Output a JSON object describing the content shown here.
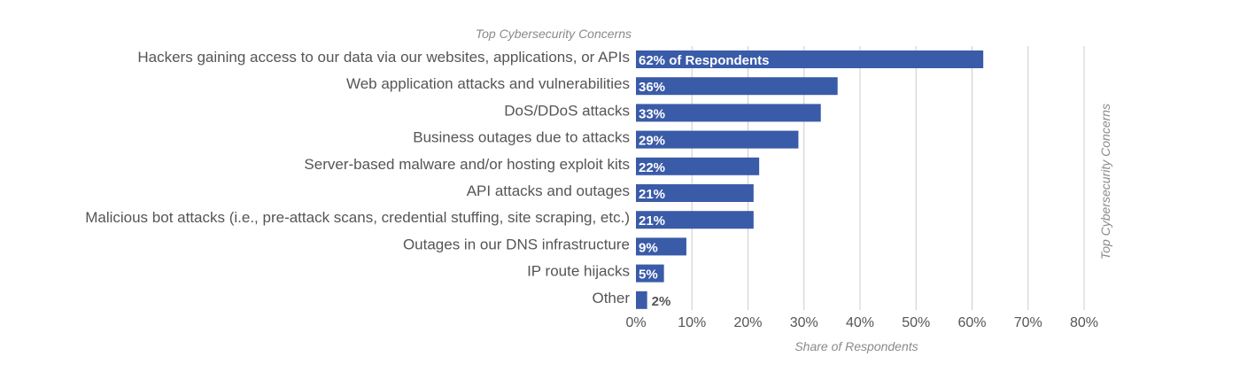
{
  "chart_data": {
    "type": "bar",
    "orientation": "horizontal",
    "title": "Top Cybersecurity Concerns",
    "side_title": "Top Cybersecurity Concerns",
    "xlabel": "Share of Respondents",
    "ylabel": "",
    "xlim": [
      0,
      80
    ],
    "x_ticks": [
      0,
      10,
      20,
      30,
      40,
      50,
      60,
      70,
      80
    ],
    "x_tick_labels": [
      "0%",
      "10%",
      "20%",
      "30%",
      "40%",
      "50%",
      "60%",
      "70%",
      "80%"
    ],
    "grid": true,
    "legend": "none",
    "bar_color": "#3a5ba8",
    "categories": [
      "Hackers gaining access to our data via our websites, applications, or APIs",
      "Web application attacks and vulnerabilities",
      "DoS/DDoS attacks",
      "Business outages due to attacks",
      "Server-based malware and/or hosting exploit kits",
      "API attacks and outages",
      "Malicious bot attacks (i.e., pre-attack scans, credential stuffing, site scraping, etc.)",
      "Outages in our DNS infrastructure",
      "IP route hijacks",
      "Other"
    ],
    "values": [
      62,
      36,
      33,
      29,
      22,
      21,
      21,
      9,
      5,
      2
    ],
    "data_labels": [
      "62% of Respondents",
      "36%",
      "33%",
      "29%",
      "22%",
      "21%",
      "21%",
      "9%",
      "5%",
      "2%"
    ]
  }
}
